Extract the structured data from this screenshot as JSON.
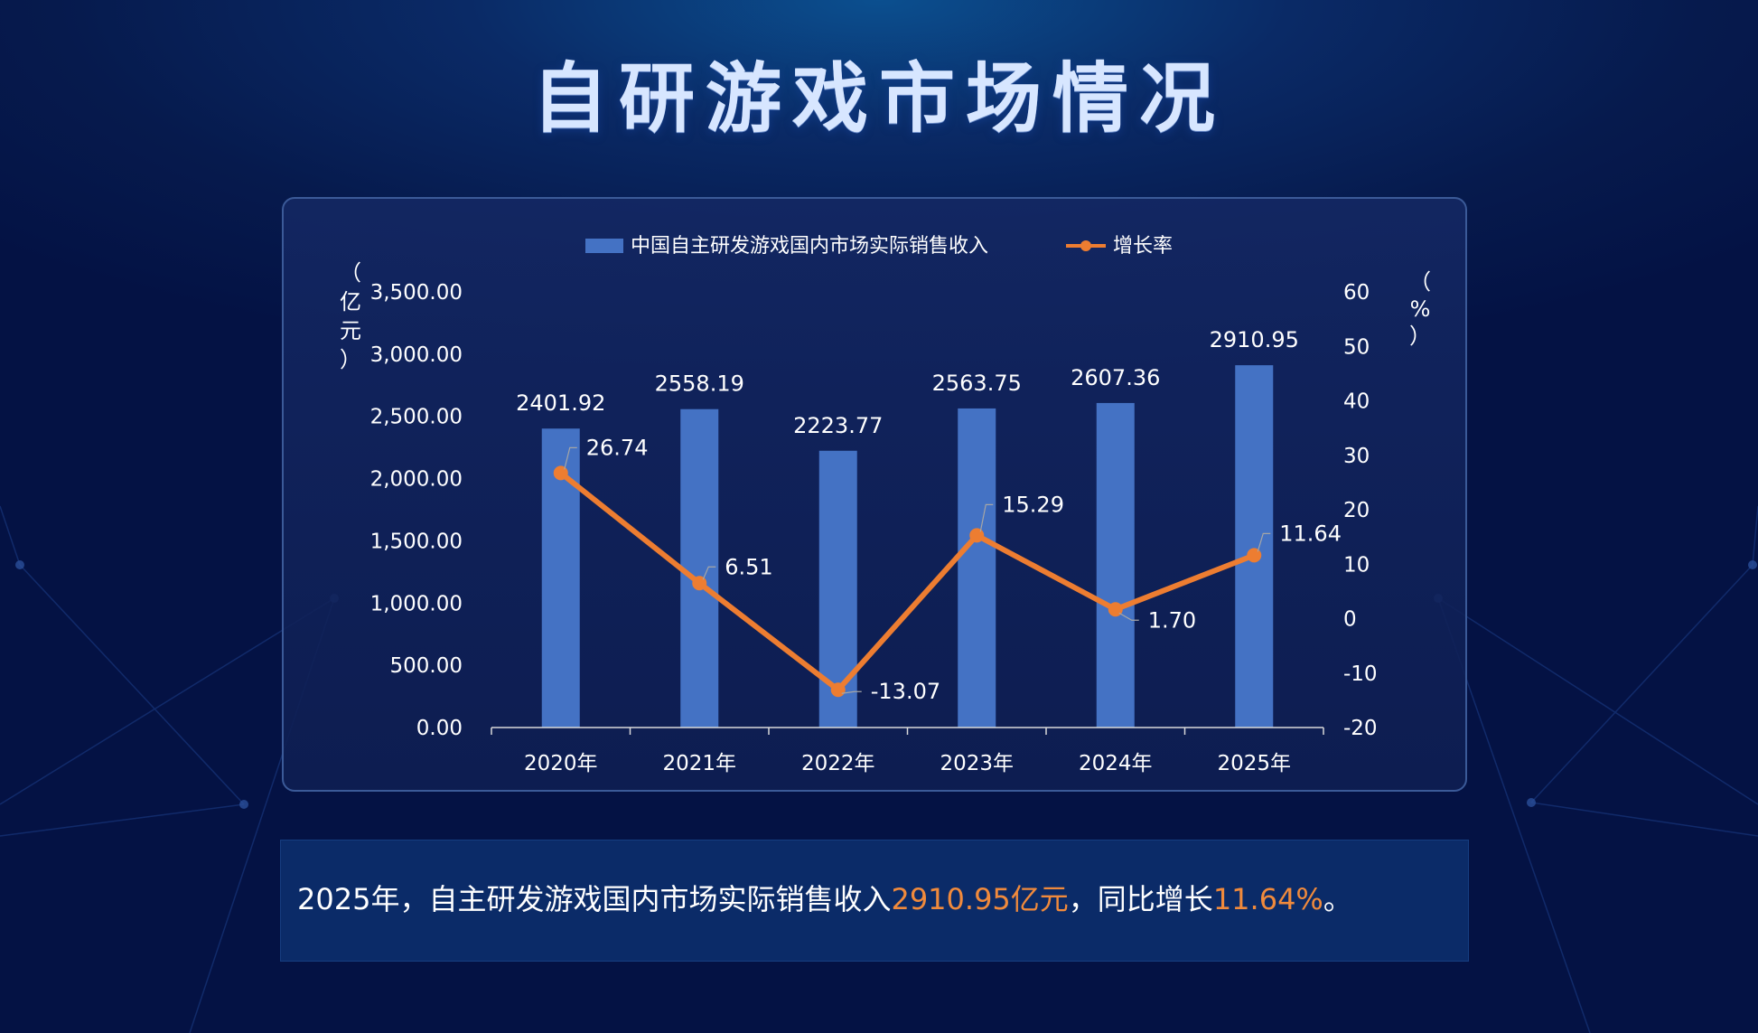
{
  "title": "自研游戏市场情况",
  "caption": {
    "prefix": "2025年，自主研发游戏国内市场实际销售收入",
    "revenue": "2910.95亿元",
    "mid": "，同比增长",
    "growth": "11.64%",
    "suffix": "。"
  },
  "colors": {
    "bar": "#4472c4",
    "line": "#ed7d31",
    "highlight": "#f08a3c"
  },
  "chart_data": {
    "type": "bar",
    "categories": [
      "2020年",
      "2021年",
      "2022年",
      "2023年",
      "2024年",
      "2025年"
    ],
    "series": [
      {
        "name": "中国自主研发游戏国内市场实际销售收入",
        "type": "bar",
        "axis": "left",
        "values": [
          2401.92,
          2558.19,
          2223.77,
          2563.75,
          2607.36,
          2910.95
        ],
        "labels": [
          "2401.92",
          "2558.19",
          "2223.77",
          "2563.75",
          "2607.36",
          "2910.95"
        ]
      },
      {
        "name": "增长率",
        "type": "line",
        "axis": "right",
        "values": [
          26.74,
          6.51,
          -13.07,
          15.29,
          1.7,
          11.64
        ],
        "labels": [
          "26.74",
          "6.51",
          "-13.07",
          "15.29",
          "1.70",
          "11.64"
        ]
      }
    ],
    "y_left": {
      "unit": "（亿元）",
      "range": [
        0,
        3500
      ],
      "ticks": [
        "0.00",
        "500.00",
        "1,000.00",
        "1,500.00",
        "2,000.00",
        "2,500.00",
        "3,000.00",
        "3,500.00"
      ]
    },
    "y_right": {
      "unit": "（%）",
      "range": [
        -20,
        60
      ],
      "ticks": [
        "-20",
        "-10",
        "0",
        "10",
        "20",
        "30",
        "40",
        "50",
        "60"
      ]
    },
    "legend_position": "top-center",
    "grid": false
  }
}
